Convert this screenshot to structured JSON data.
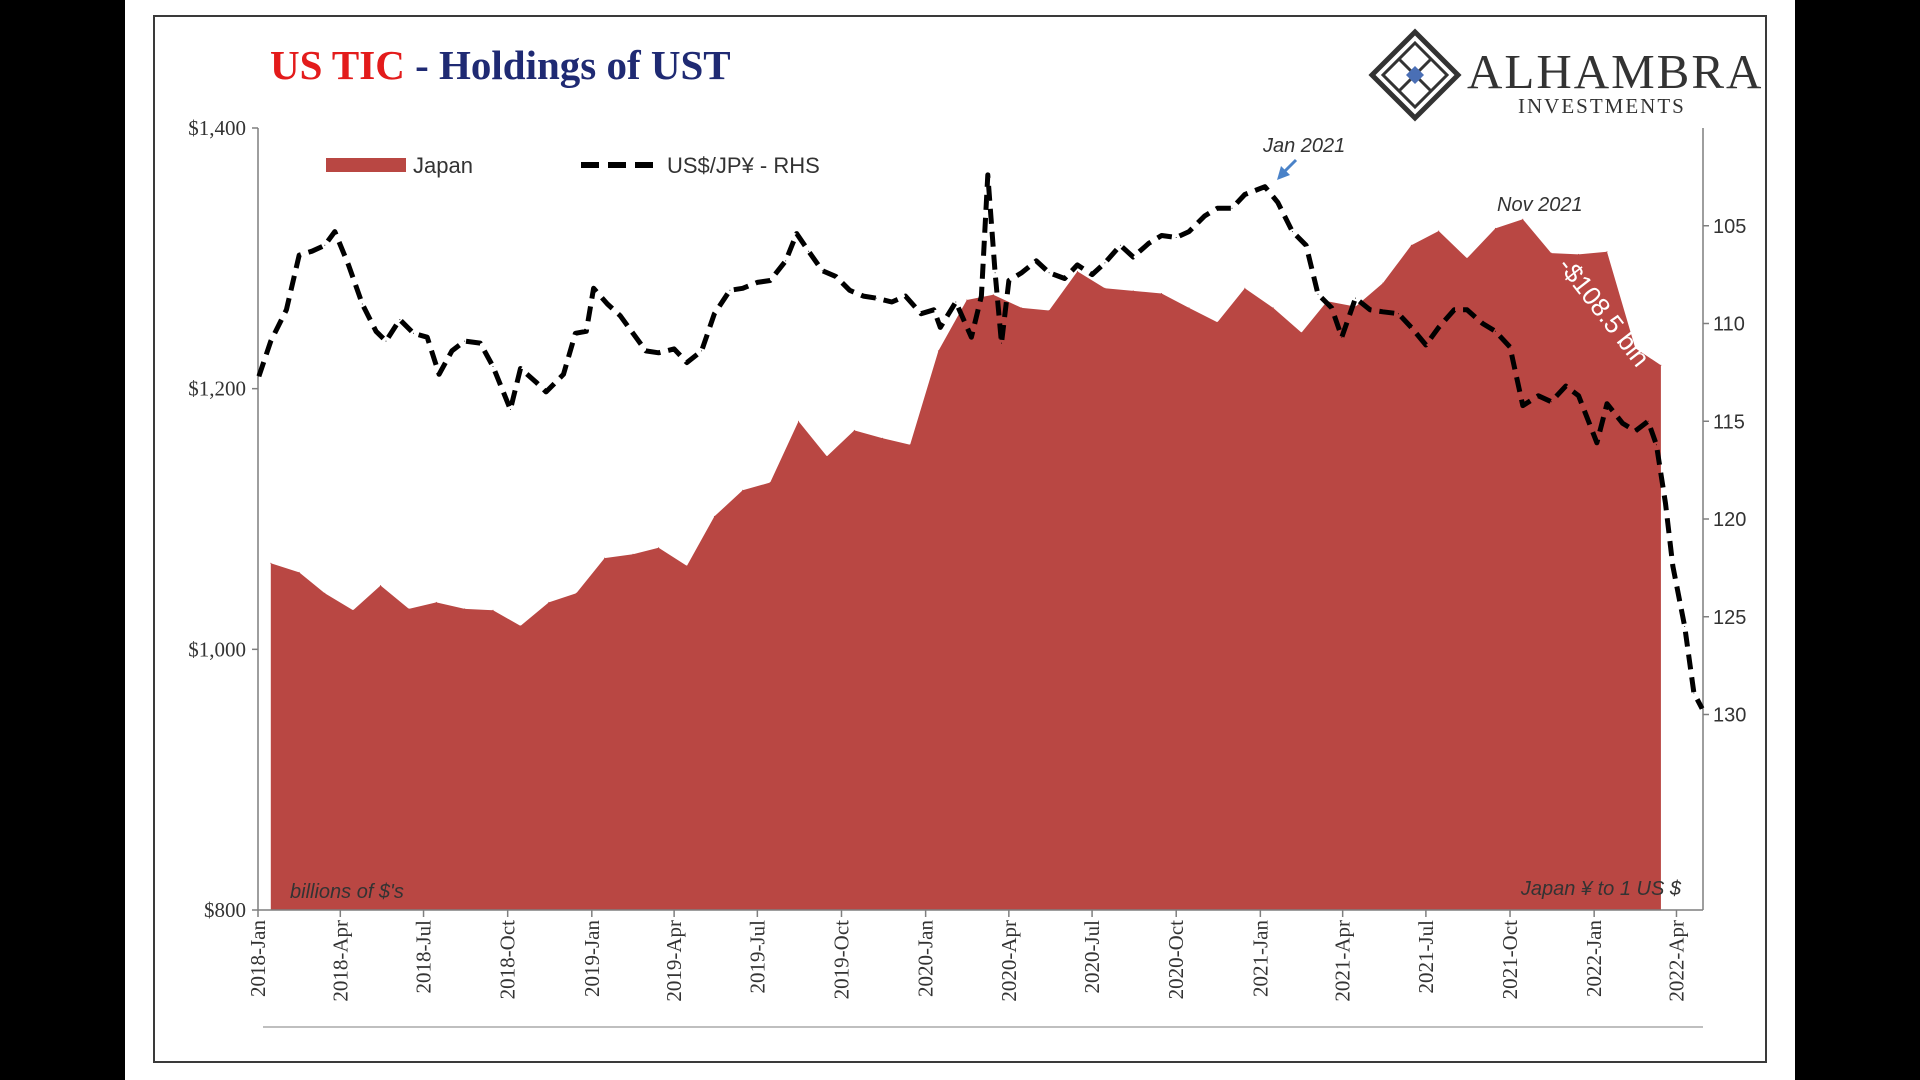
{
  "colors": {
    "japan_area": "#b94743",
    "usdjpy_line": "#000000",
    "title_red": "#e31b1b",
    "title_navy": "#1f2a73",
    "annotation_arrow": "#4a82c8",
    "axis": "#7f7f7f",
    "background": "#ffffff"
  },
  "header": {
    "title_part1": "US TIC",
    "title_part2": " - Holdings of UST"
  },
  "logo": {
    "name": "ALHAMBRA",
    "subtitle": "INVESTMENTS",
    "icon": "diamond-lattice-icon"
  },
  "chart_data": {
    "type": "area",
    "legend_position": "top-left",
    "grid": false,
    "x_ticks": [
      "2018-Jan",
      "2018-Apr",
      "2018-Jul",
      "2018-Oct",
      "2019-Jan",
      "2019-Apr",
      "2019-Jul",
      "2019-Oct",
      "2020-Jan",
      "2020-Apr",
      "2020-Jul",
      "2020-Oct",
      "2021-Jan",
      "2021-Apr",
      "2021-Jul",
      "2021-Oct",
      "2022-Jan",
      "2022-Apr"
    ],
    "x_range": [
      "2018-01-01",
      "2022-04-30"
    ],
    "y_left": {
      "label": "billions of $'s",
      "min": 800,
      "max": 1400,
      "step": 200,
      "tick_labels": [
        "$800",
        "$1,000",
        "$1,200",
        "$1,400"
      ]
    },
    "y_right": {
      "label": "Japan ¥ to 1 US $",
      "inverted": true,
      "min": 100,
      "max": 140,
      "tick_values": [
        105,
        110,
        115,
        120,
        125,
        130
      ]
    },
    "series": [
      {
        "name": "Japan",
        "type": "area",
        "axis": "left",
        "x": [
          "2018-01",
          "2018-02",
          "2018-03",
          "2018-04",
          "2018-05",
          "2018-06",
          "2018-07",
          "2018-08",
          "2018-09",
          "2018-10",
          "2018-11",
          "2018-12",
          "2019-01",
          "2019-02",
          "2019-03",
          "2019-04",
          "2019-05",
          "2019-06",
          "2019-07",
          "2019-08",
          "2019-09",
          "2019-10",
          "2019-11",
          "2019-12",
          "2020-01",
          "2020-02",
          "2020-03",
          "2020-04",
          "2020-05",
          "2020-06",
          "2020-07",
          "2020-08",
          "2020-09",
          "2020-10",
          "2020-11",
          "2020-12",
          "2021-01",
          "2021-02",
          "2021-03",
          "2021-04",
          "2021-05",
          "2021-06",
          "2021-07",
          "2021-08",
          "2021-09",
          "2021-10",
          "2021-11",
          "2021-12",
          "2022-01",
          "2022-02",
          "2022-03",
          "2022-04"
        ],
        "values": [
          1066,
          1059,
          1043,
          1030,
          1049,
          1031,
          1036,
          1031,
          1030,
          1018,
          1036,
          1043,
          1070,
          1073,
          1078,
          1064,
          1102,
          1122,
          1128,
          1175,
          1148,
          1168,
          1162,
          1157,
          1229,
          1268,
          1272,
          1262,
          1260,
          1290,
          1277,
          1275,
          1273,
          1262,
          1251,
          1277,
          1262,
          1243,
          1267,
          1263,
          1281,
          1310,
          1321,
          1300,
          1323,
          1330,
          1304,
          1303,
          1305,
          1231,
          1218,
          null
        ]
      },
      {
        "name": "US$/JP¥ - RHS",
        "type": "line",
        "style": "dashed",
        "axis": "right",
        "x": [
          "2018-01-02",
          "2018-01-15",
          "2018-02-01",
          "2018-02-15",
          "2018-03-01",
          "2018-03-15",
          "2018-03-26",
          "2018-04-10",
          "2018-04-25",
          "2018-05-10",
          "2018-05-21",
          "2018-06-05",
          "2018-06-20",
          "2018-07-05",
          "2018-07-18",
          "2018-08-01",
          "2018-08-15",
          "2018-09-01",
          "2018-09-15",
          "2018-10-04",
          "2018-10-15",
          "2018-11-01",
          "2018-11-12",
          "2018-12-01",
          "2018-12-14",
          "2018-12-26",
          "2019-01-03",
          "2019-01-18",
          "2019-02-01",
          "2019-02-15",
          "2019-03-01",
          "2019-03-15",
          "2019-04-01",
          "2019-04-15",
          "2019-05-01",
          "2019-05-15",
          "2019-06-01",
          "2019-06-15",
          "2019-07-01",
          "2019-07-15",
          "2019-08-01",
          "2019-08-13",
          "2019-08-26",
          "2019-09-10",
          "2019-09-25",
          "2019-10-10",
          "2019-10-25",
          "2019-11-08",
          "2019-11-25",
          "2019-12-10",
          "2019-12-27",
          "2020-01-10",
          "2020-01-17",
          "2020-02-03",
          "2020-02-20",
          "2020-03-02",
          "2020-03-09",
          "2020-03-17",
          "2020-03-24",
          "2020-04-01",
          "2020-04-15",
          "2020-05-01",
          "2020-05-15",
          "2020-06-01",
          "2020-06-15",
          "2020-07-01",
          "2020-07-15",
          "2020-08-01",
          "2020-08-15",
          "2020-09-01",
          "2020-09-15",
          "2020-10-01",
          "2020-10-15",
          "2020-11-01",
          "2020-11-15",
          "2020-12-01",
          "2020-12-15",
          "2021-01-06",
          "2021-01-20",
          "2021-02-05",
          "2021-02-20",
          "2021-03-05",
          "2021-03-20",
          "2021-03-31",
          "2021-04-15",
          "2021-05-01",
          "2021-05-15",
          "2021-06-01",
          "2021-06-15",
          "2021-07-01",
          "2021-07-15",
          "2021-08-01",
          "2021-08-15",
          "2021-09-01",
          "2021-09-15",
          "2021-10-01",
          "2021-10-15",
          "2021-11-01",
          "2021-11-15",
          "2021-12-01",
          "2021-12-15",
          "2022-01-04",
          "2022-01-15",
          "2022-02-01",
          "2022-02-15",
          "2022-03-01",
          "2022-03-10",
          "2022-03-20",
          "2022-03-28",
          "2022-04-10",
          "2022-04-20",
          "2022-04-29"
        ],
        "values": [
          112.7,
          110.9,
          109.3,
          106.5,
          106.3,
          106.0,
          105.3,
          107.0,
          109.0,
          110.4,
          110.9,
          109.8,
          110.5,
          110.7,
          112.6,
          111.4,
          110.9,
          111.0,
          112.2,
          114.4,
          112.3,
          113.0,
          113.5,
          112.6,
          110.5,
          110.4,
          108.2,
          109.0,
          109.6,
          110.5,
          111.4,
          111.5,
          111.3,
          112.0,
          111.4,
          109.5,
          108.3,
          108.2,
          107.9,
          107.8,
          106.8,
          105.4,
          106.3,
          107.3,
          107.6,
          108.3,
          108.6,
          108.7,
          108.9,
          108.6,
          109.5,
          109.3,
          110.2,
          108.9,
          110.7,
          108.6,
          102.4,
          107.4,
          111.0,
          107.8,
          107.4,
          106.8,
          107.4,
          107.7,
          107.0,
          107.5,
          106.9,
          106.0,
          106.6,
          105.9,
          105.5,
          105.6,
          105.3,
          104.5,
          104.1,
          104.1,
          103.4,
          103.0,
          103.8,
          105.3,
          106.0,
          108.5,
          109.2,
          110.7,
          108.7,
          109.3,
          109.4,
          109.5,
          110.2,
          111.1,
          110.2,
          109.3,
          109.3,
          110.0,
          110.4,
          111.2,
          114.2,
          113.7,
          114.0,
          113.2,
          113.7,
          116.1,
          114.1,
          115.1,
          115.5,
          115.0,
          116.2,
          119.2,
          122.4,
          125.5,
          128.9,
          129.7
        ]
      }
    ],
    "annotations": [
      {
        "text": "Jan 2021",
        "style": "italic",
        "arrow": true
      },
      {
        "text": "Nov 2021",
        "style": "italic"
      },
      {
        "text": "-$108.5 bln",
        "color": "#ffffff",
        "rotated": true
      }
    ]
  }
}
